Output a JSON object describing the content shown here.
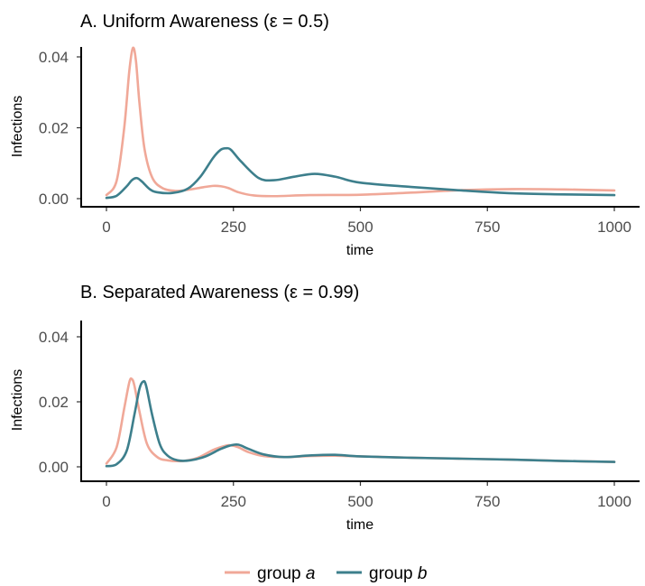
{
  "chart_data": [
    {
      "id": "A",
      "type": "line",
      "title": "A. Uniform Awareness (ε = 0.5)",
      "xlabel": "time",
      "ylabel": "Infections",
      "xlim": [
        0,
        1000
      ],
      "ylim": [
        0,
        0.043
      ],
      "xticks": [
        0,
        250,
        500,
        750,
        1000
      ],
      "xtick_labels": [
        "0",
        "250",
        "500",
        "750",
        "1000"
      ],
      "yticks": [
        0,
        0.02,
        0.04
      ],
      "ytick_labels": [
        "0.00",
        "0.02",
        "0.04"
      ],
      "grid": false,
      "series": [
        {
          "name": "group a",
          "color": "#F0A898",
          "x": [
            0,
            20,
            35,
            45,
            52,
            58,
            65,
            75,
            90,
            110,
            135,
            160,
            190,
            210,
            225,
            240,
            260,
            290,
            330,
            400,
            500,
            600,
            700,
            800,
            900,
            1000
          ],
          "y": [
            0.001,
            0.005,
            0.02,
            0.036,
            0.0425,
            0.039,
            0.027,
            0.014,
            0.006,
            0.003,
            0.0022,
            0.0025,
            0.0032,
            0.0036,
            0.0035,
            0.003,
            0.0018,
            0.0009,
            0.0007,
            0.001,
            0.0011,
            0.0017,
            0.0024,
            0.0027,
            0.0026,
            0.0023
          ]
        },
        {
          "name": "group b",
          "color": "#3D7F8C",
          "x": [
            0,
            20,
            40,
            50,
            60,
            70,
            85,
            100,
            130,
            160,
            185,
            210,
            225,
            235,
            245,
            265,
            300,
            330,
            370,
            410,
            450,
            500,
            600,
            700,
            800,
            900,
            1000
          ],
          "y": [
            0.0002,
            0.0008,
            0.0035,
            0.0052,
            0.0058,
            0.0048,
            0.0027,
            0.0018,
            0.0016,
            0.0028,
            0.0062,
            0.0115,
            0.0138,
            0.0142,
            0.0138,
            0.0105,
            0.0058,
            0.0052,
            0.0062,
            0.007,
            0.0062,
            0.0045,
            0.0033,
            0.0023,
            0.0015,
            0.0012,
            0.001
          ]
        }
      ]
    },
    {
      "id": "B",
      "type": "line",
      "title": "B. Separated Awareness (ε = 0.99)",
      "xlabel": "time",
      "ylabel": "Infections",
      "xlim": [
        0,
        1000
      ],
      "ylim": [
        0,
        0.043
      ],
      "xticks": [
        0,
        250,
        500,
        750,
        1000
      ],
      "xtick_labels": [
        "0",
        "250",
        "500",
        "750",
        "1000"
      ],
      "yticks": [
        0,
        0.02,
        0.04
      ],
      "ytick_labels": [
        "0.00",
        "0.02",
        "0.04"
      ],
      "grid": false,
      "series": [
        {
          "name": "group a",
          "color": "#F0A898",
          "x": [
            0,
            20,
            35,
            45,
            50,
            55,
            65,
            80,
            100,
            120,
            150,
            180,
            210,
            235,
            245,
            260,
            280,
            310,
            350,
            400,
            450,
            500,
            600,
            700,
            800,
            900,
            1000
          ],
          "y": [
            0.001,
            0.006,
            0.018,
            0.026,
            0.027,
            0.025,
            0.017,
            0.007,
            0.003,
            0.002,
            0.0018,
            0.0028,
            0.0052,
            0.0065,
            0.0066,
            0.006,
            0.0045,
            0.0033,
            0.003,
            0.0033,
            0.0034,
            0.0032,
            0.0028,
            0.0025,
            0.0022,
            0.0018,
            0.0015
          ]
        },
        {
          "name": "group b",
          "color": "#3D7F8C",
          "x": [
            0,
            20,
            40,
            55,
            65,
            72,
            78,
            90,
            105,
            120,
            140,
            165,
            195,
            225,
            245,
            260,
            280,
            310,
            350,
            400,
            450,
            500,
            600,
            700,
            800,
            900,
            1000
          ],
          "y": [
            0.0002,
            0.0008,
            0.005,
            0.016,
            0.024,
            0.0262,
            0.025,
            0.016,
            0.007,
            0.0035,
            0.002,
            0.002,
            0.0032,
            0.0055,
            0.0066,
            0.0068,
            0.0055,
            0.0038,
            0.003,
            0.0035,
            0.0037,
            0.0032,
            0.0028,
            0.0025,
            0.0022,
            0.0018,
            0.0015
          ]
        }
      ]
    }
  ],
  "legend": {
    "position": "bottom",
    "items": [
      {
        "prefix": "group ",
        "italic": "a",
        "color": "#F0A898"
      },
      {
        "prefix": "group ",
        "italic": "b",
        "color": "#3D7F8C"
      }
    ]
  }
}
